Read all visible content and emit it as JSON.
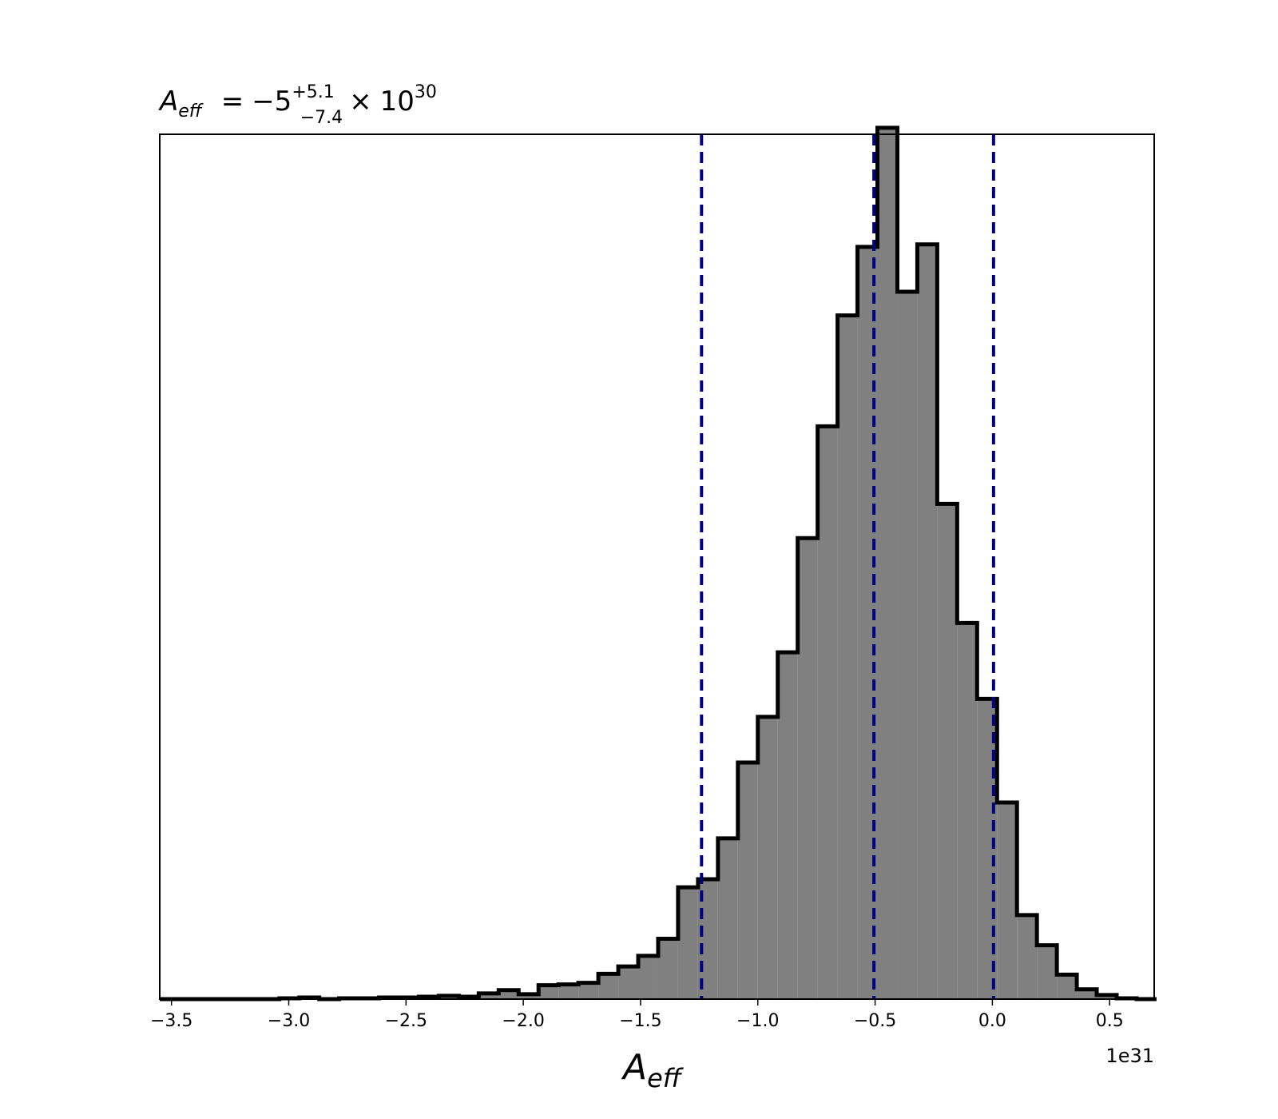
{
  "chart_data": {
    "type": "bar",
    "histogram": true,
    "title": {
      "symbol": "A",
      "symbol_sub": "eff",
      "equals": "=",
      "value": "−5",
      "upper": "+5.1",
      "lower": "−7.4",
      "times": "×",
      "base": "10",
      "exponent": "30"
    },
    "xlabel": {
      "symbol": "A",
      "sub": "eff"
    },
    "ylabel": "",
    "x_offset_label": "1e31",
    "xlim": [
      -3.55,
      0.69
    ],
    "ylim": [
      0,
      1060
    ],
    "xticks": [
      -3.5,
      -3.0,
      -2.5,
      -2.0,
      -1.5,
      -1.0,
      -0.5,
      0.0,
      0.5
    ],
    "xtick_labels": [
      "−3.5",
      "−3.0",
      "−2.5",
      "−2.0",
      "−1.5",
      "−1.0",
      "−0.5",
      "0.0",
      "0.5"
    ],
    "yticks_shown": false,
    "grid": false,
    "bin_edges": [
      -3.55,
      -3.465,
      -3.38,
      -3.295,
      -3.21,
      -3.125,
      -3.04,
      -2.955,
      -2.87,
      -2.785,
      -2.7,
      -2.615,
      -2.53,
      -2.445,
      -2.36,
      -2.275,
      -2.19,
      -2.105,
      -2.02,
      -1.935,
      -1.85,
      -1.765,
      -1.68,
      -1.595,
      -1.51,
      -1.425,
      -1.34,
      -1.255,
      -1.17,
      -1.085,
      -1.0,
      -0.915,
      -0.83,
      -0.745,
      -0.66,
      -0.575,
      -0.49,
      -0.405,
      -0.32,
      -0.235,
      -0.15,
      -0.065,
      0.02,
      0.105,
      0.19,
      0.275,
      0.36,
      0.445,
      0.53,
      0.615,
      0.7
    ],
    "counts": [
      0,
      0,
      0,
      0,
      0,
      0,
      1,
      2,
      0,
      1,
      1,
      2,
      2,
      3,
      4,
      3,
      7,
      11,
      6,
      17,
      18,
      20,
      31,
      40,
      53,
      74,
      137,
      147,
      197,
      290,
      346,
      425,
      565,
      702,
      838,
      922,
      1068,
      867,
      925,
      607,
      461,
      368,
      241,
      103,
      66,
      30,
      12,
      5,
      1,
      0
    ],
    "fill_color": "#808080",
    "edge_color": "#000000",
    "vlines": [
      {
        "x": -1.24,
        "style": "dashed",
        "color": "#000080"
      },
      {
        "x": -0.505,
        "style": "dashed",
        "color": "#000080"
      },
      {
        "x": 0.005,
        "style": "dashed",
        "color": "#000080"
      }
    ]
  }
}
